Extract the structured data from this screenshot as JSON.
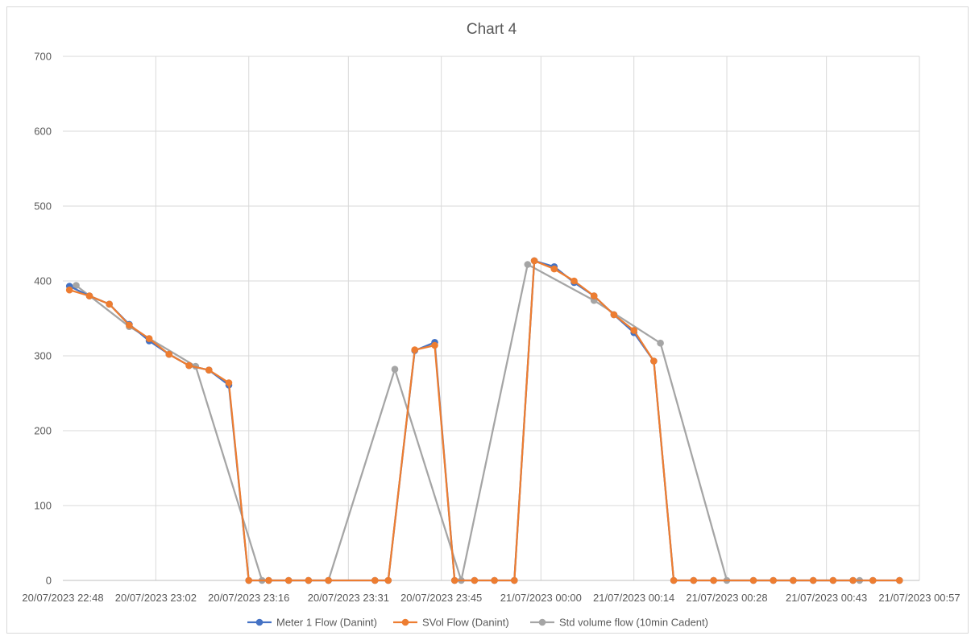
{
  "chart_data": {
    "type": "line",
    "title": "Chart 4",
    "xlabel": "",
    "ylabel": "",
    "ylim": [
      0,
      700
    ],
    "yticks": [
      "0",
      "100",
      "200",
      "300",
      "400",
      "500",
      "600",
      "700"
    ],
    "xlim": [
      "20/07/2023 22:48",
      "21/07/2023 00:57"
    ],
    "xticks": [
      "20/07/2023 22:48",
      "20/07/2023 23:02",
      "20/07/2023 23:16",
      "20/07/2023 23:31",
      "20/07/2023 23:45",
      "21/07/2023 00:00",
      "21/07/2023 00:14",
      "21/07/2023 00:28",
      "21/07/2023 00:43",
      "21/07/2023 00:57"
    ],
    "grid": true,
    "legend_position": "bottom",
    "series": [
      {
        "name": "Meter 1 Flow (Danint)",
        "color": "#4472c4",
        "points": [
          [
            "20/07/2023 22:49",
            393
          ],
          [
            "20/07/2023 22:52",
            380
          ],
          [
            "20/07/2023 22:55",
            369
          ],
          [
            "20/07/2023 22:58",
            342
          ],
          [
            "20/07/2023 23:01",
            320
          ],
          [
            "20/07/2023 23:04",
            302
          ],
          [
            "20/07/2023 23:07",
            287
          ],
          [
            "20/07/2023 23:10",
            281
          ],
          [
            "20/07/2023 23:13",
            261
          ],
          [
            "20/07/2023 23:16",
            0
          ],
          [
            "20/07/2023 23:19",
            0
          ],
          [
            "20/07/2023 23:22",
            0
          ],
          [
            "20/07/2023 23:25",
            0
          ],
          [
            "20/07/2023 23:28",
            0
          ],
          [
            "20/07/2023 23:35",
            0
          ],
          [
            "20/07/2023 23:37",
            0
          ],
          [
            "20/07/2023 23:41",
            307
          ],
          [
            "20/07/2023 23:44",
            318
          ],
          [
            "20/07/2023 23:47",
            0
          ],
          [
            "20/07/2023 23:50",
            0
          ],
          [
            "20/07/2023 23:53",
            0
          ],
          [
            "20/07/2023 23:56",
            0
          ],
          [
            "20/07/2023 23:59",
            427
          ],
          [
            "21/07/2023 00:02",
            419
          ],
          [
            "21/07/2023 00:05",
            398
          ],
          [
            "21/07/2023 00:08",
            380
          ],
          [
            "21/07/2023 00:11",
            355
          ],
          [
            "21/07/2023 00:14",
            331
          ],
          [
            "21/07/2023 00:17",
            293
          ],
          [
            "21/07/2023 00:20",
            0
          ],
          [
            "21/07/2023 00:23",
            0
          ],
          [
            "21/07/2023 00:26",
            0
          ],
          [
            "21/07/2023 00:32",
            0
          ],
          [
            "21/07/2023 00:35",
            0
          ],
          [
            "21/07/2023 00:38",
            0
          ],
          [
            "21/07/2023 00:41",
            0
          ],
          [
            "21/07/2023 00:44",
            0
          ],
          [
            "21/07/2023 00:47",
            0
          ],
          [
            "21/07/2023 00:50",
            0
          ],
          [
            "21/07/2023 00:54",
            0
          ]
        ]
      },
      {
        "name": "SVol Flow (Danint)",
        "color": "#ed7d31",
        "points": [
          [
            "20/07/2023 22:49",
            388
          ],
          [
            "20/07/2023 22:52",
            380
          ],
          [
            "20/07/2023 22:55",
            369
          ],
          [
            "20/07/2023 22:58",
            341
          ],
          [
            "20/07/2023 23:01",
            323
          ],
          [
            "20/07/2023 23:04",
            302
          ],
          [
            "20/07/2023 23:07",
            287
          ],
          [
            "20/07/2023 23:10",
            281
          ],
          [
            "20/07/2023 23:13",
            264
          ],
          [
            "20/07/2023 23:16",
            0
          ],
          [
            "20/07/2023 23:19",
            0
          ],
          [
            "20/07/2023 23:22",
            0
          ],
          [
            "20/07/2023 23:25",
            0
          ],
          [
            "20/07/2023 23:28",
            0
          ],
          [
            "20/07/2023 23:35",
            0
          ],
          [
            "20/07/2023 23:37",
            0
          ],
          [
            "20/07/2023 23:41",
            308
          ],
          [
            "20/07/2023 23:44",
            314
          ],
          [
            "20/07/2023 23:47",
            0
          ],
          [
            "20/07/2023 23:50",
            0
          ],
          [
            "20/07/2023 23:53",
            0
          ],
          [
            "20/07/2023 23:56",
            0
          ],
          [
            "20/07/2023 23:59",
            427
          ],
          [
            "21/07/2023 00:02",
            416
          ],
          [
            "21/07/2023 00:05",
            400
          ],
          [
            "21/07/2023 00:08",
            380
          ],
          [
            "21/07/2023 00:11",
            355
          ],
          [
            "21/07/2023 00:14",
            334
          ],
          [
            "21/07/2023 00:17",
            293
          ],
          [
            "21/07/2023 00:20",
            0
          ],
          [
            "21/07/2023 00:23",
            0
          ],
          [
            "21/07/2023 00:26",
            0
          ],
          [
            "21/07/2023 00:32",
            0
          ],
          [
            "21/07/2023 00:35",
            0
          ],
          [
            "21/07/2023 00:38",
            0
          ],
          [
            "21/07/2023 00:41",
            0
          ],
          [
            "21/07/2023 00:44",
            0
          ],
          [
            "21/07/2023 00:47",
            0
          ],
          [
            "21/07/2023 00:50",
            0
          ],
          [
            "21/07/2023 00:54",
            0
          ]
        ]
      },
      {
        "name": "Std volume flow (10min Cadent)",
        "color": "#a5a5a5",
        "points": [
          [
            "20/07/2023 22:50",
            394
          ],
          [
            "20/07/2023 22:58",
            339
          ],
          [
            "20/07/2023 23:08",
            286
          ],
          [
            "20/07/2023 23:18",
            0
          ],
          [
            "20/07/2023 23:28",
            0
          ],
          [
            "20/07/2023 23:38",
            282
          ],
          [
            "20/07/2023 23:48",
            0
          ],
          [
            "20/07/2023 23:58",
            422
          ],
          [
            "21/07/2023 00:08",
            374
          ],
          [
            "21/07/2023 00:18",
            317
          ],
          [
            "21/07/2023 00:28",
            0
          ],
          [
            "21/07/2023 00:38",
            0
          ],
          [
            "21/07/2023 00:48",
            0
          ]
        ]
      }
    ]
  }
}
